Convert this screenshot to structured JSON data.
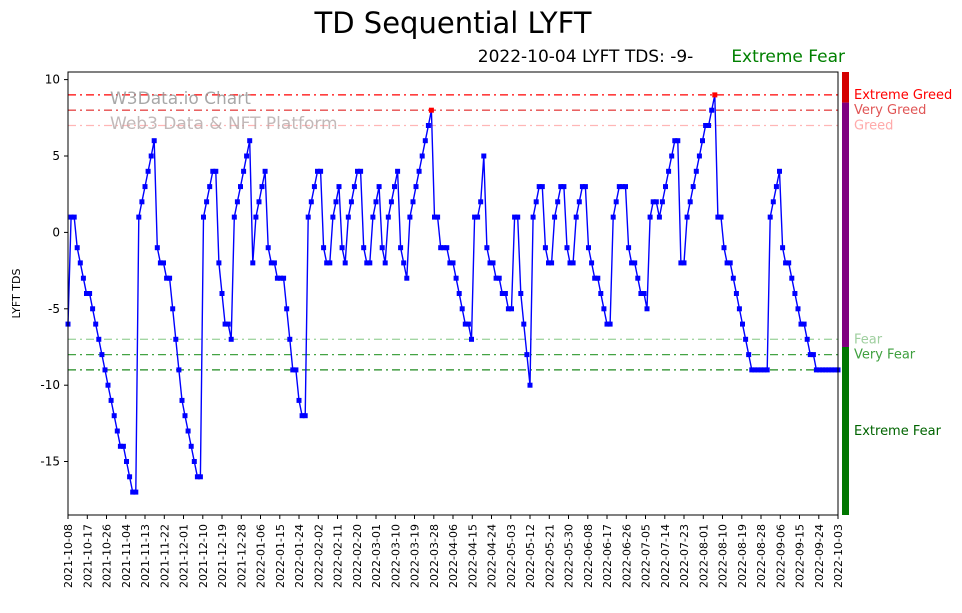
{
  "title": "TD Sequential LYFT",
  "subtitle": {
    "date_text": "2022-10-04 LYFT TDS: -9-",
    "sentiment": "Extreme Fear",
    "sentiment_color": "#008000"
  },
  "watermark": {
    "line1": "W3Data.io Chart",
    "line2": "Web3 Data & NFT Platform"
  },
  "chart_data": {
    "type": "line",
    "title": "TD Sequential LYFT",
    "ylabel": "LYFT TDS",
    "ylim": [
      -18.5,
      10.5
    ],
    "yticks": [
      10,
      5,
      0,
      -5,
      -10,
      -15
    ],
    "grid": false,
    "legend": "none",
    "xtick_labels": [
      "2021-10-08",
      "2021-10-17",
      "2021-10-26",
      "2021-11-04",
      "2021-11-13",
      "2021-11-22",
      "2021-12-01",
      "2021-12-10",
      "2021-12-19",
      "2021-12-28",
      "2022-01-06",
      "2022-01-15",
      "2022-01-24",
      "2022-02-02",
      "2022-02-11",
      "2022-02-20",
      "2022-03-01",
      "2022-03-10",
      "2022-03-19",
      "2022-03-28",
      "2022-04-06",
      "2022-04-15",
      "2022-04-24",
      "2022-05-03",
      "2022-05-12",
      "2022-05-21",
      "2022-05-30",
      "2022-06-08",
      "2022-06-17",
      "2022-06-26",
      "2022-07-05",
      "2022-07-14",
      "2022-07-23",
      "2022-08-01",
      "2022-08-10",
      "2022-08-19",
      "2022-08-28",
      "2022-09-06",
      "2022-09-15",
      "2022-09-24",
      "2022-10-03"
    ],
    "series": [
      {
        "name": "LYFT TDS",
        "color": "#0000ff",
        "marker": "square",
        "flag_color": "#ff0000",
        "flagged_indices": [
          118,
          210
        ],
        "values": [
          -6,
          1,
          1,
          -1,
          -2,
          -3,
          -4,
          -4,
          -5,
          -6,
          -7,
          -8,
          -9,
          -10,
          -11,
          -12,
          -13,
          -14,
          -14,
          -15,
          -16,
          -17,
          -17,
          1,
          2,
          3,
          4,
          5,
          6,
          -1,
          -2,
          -2,
          -3,
          -3,
          -5,
          -7,
          -9,
          -11,
          -12,
          -13,
          -14,
          -15,
          -16,
          -16,
          1,
          2,
          3,
          4,
          4,
          -2,
          -4,
          -6,
          -6,
          -7,
          1,
          2,
          3,
          4,
          5,
          6,
          -2,
          1,
          2,
          3,
          4,
          -1,
          -2,
          -2,
          -3,
          -3,
          -3,
          -5,
          -7,
          -9,
          -9,
          -11,
          -12,
          -12,
          1,
          2,
          3,
          4,
          4,
          -1,
          -2,
          -2,
          1,
          2,
          3,
          -1,
          -2,
          1,
          2,
          3,
          4,
          4,
          -1,
          -2,
          -2,
          1,
          2,
          3,
          -1,
          -2,
          1,
          2,
          3,
          4,
          -1,
          -2,
          -3,
          1,
          2,
          3,
          4,
          5,
          6,
          7,
          8,
          1,
          1,
          -1,
          -1,
          -1,
          -2,
          -2,
          -3,
          -4,
          -5,
          -6,
          -6,
          -7,
          1,
          1,
          2,
          5,
          -1,
          -2,
          -2,
          -3,
          -3,
          -4,
          -4,
          -5,
          -5,
          1,
          1,
          -4,
          -6,
          -8,
          -10,
          1,
          2,
          3,
          3,
          -1,
          -2,
          -2,
          1,
          2,
          3,
          3,
          -1,
          -2,
          -2,
          1,
          2,
          3,
          3,
          -1,
          -2,
          -3,
          -3,
          -4,
          -5,
          -6,
          -6,
          1,
          2,
          3,
          3,
          3,
          -1,
          -2,
          -2,
          -3,
          -4,
          -4,
          -5,
          1,
          2,
          2,
          1,
          2,
          3,
          4,
          5,
          6,
          6,
          -2,
          -2,
          1,
          2,
          3,
          4,
          5,
          6,
          7,
          7,
          8,
          9,
          1,
          1,
          -1,
          -2,
          -2,
          -3,
          -4,
          -5,
          -6,
          -7,
          -8,
          -9,
          -9,
          -9,
          -9,
          -9,
          -9,
          1,
          2,
          3,
          4,
          -1,
          -2,
          -2,
          -3,
          -4,
          -5,
          -6,
          -6,
          -7,
          -8,
          -8,
          -9,
          -9,
          -9,
          -9,
          -9,
          -9,
          -9,
          -9
        ]
      }
    ],
    "threshold_lines": [
      {
        "value": 9,
        "label": "Extreme Greed",
        "color": "#ff0000"
      },
      {
        "value": 8,
        "label": "Very Greed",
        "color": "#e64c4c"
      },
      {
        "value": 7,
        "label": "Greed",
        "color": "#ffb6b6"
      },
      {
        "value": -7,
        "label": "Fear",
        "color": "#a3d6a3"
      },
      {
        "value": -8,
        "label": "Very Fear",
        "color": "#44a344"
      },
      {
        "value": -9,
        "label": "",
        "color": "#1f8a1f"
      }
    ],
    "side_labels": [
      {
        "text": "Extreme Greed",
        "value": 9,
        "color": "#ff0000"
      },
      {
        "text": "Very Greed",
        "value": 8,
        "color": "#e05555"
      },
      {
        "text": "Greed",
        "value": 7,
        "color": "#ffaaaa"
      },
      {
        "text": "Fear",
        "value": -7,
        "color": "#9fcf9f"
      },
      {
        "text": "Very Fear",
        "value": -8,
        "color": "#3fa03f"
      },
      {
        "text": "Extreme Fear",
        "value": -13,
        "color": "#006400"
      }
    ],
    "side_bar_segments": [
      {
        "from": 10.5,
        "to": 8.5,
        "color": "#d40000"
      },
      {
        "from": 8.5,
        "to": -7.5,
        "color": "#800080"
      },
      {
        "from": -7.5,
        "to": -18.5,
        "color": "#007700"
      }
    ]
  }
}
